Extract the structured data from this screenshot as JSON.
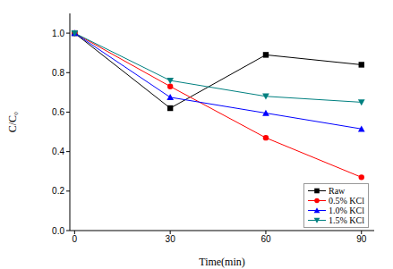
{
  "chart_data": {
    "type": "line",
    "x_label": "Time(min)",
    "y_label": "C/C₀",
    "x": [
      0,
      30,
      60,
      90
    ],
    "series": [
      {
        "name": "Raw",
        "color": "#000000",
        "marker": "square",
        "values": [
          1.0,
          0.62,
          0.89,
          0.84
        ]
      },
      {
        "name": "0.5% KCl",
        "color": "#ff0000",
        "marker": "circle",
        "values": [
          1.0,
          0.73,
          0.47,
          0.27
        ]
      },
      {
        "name": "1.0% KCl",
        "color": "#0000ff",
        "marker": "triangle-up",
        "values": [
          1.0,
          0.675,
          0.595,
          0.515
        ]
      },
      {
        "name": "1.5% KCl",
        "color": "#008080",
        "marker": "triangle-down",
        "values": [
          1.0,
          0.76,
          0.68,
          0.65
        ]
      }
    ],
    "xlim": [
      -1.5,
      94
    ],
    "ylim": [
      0,
      1.1
    ],
    "xticks": [
      0,
      30,
      60,
      90
    ],
    "yticks": [
      {
        "value": 0,
        "label": "0.0"
      },
      0.2,
      0.4,
      0.6,
      0.8,
      {
        "value": 1,
        "label": "1.0"
      }
    ],
    "grid": false,
    "legend": "lower right"
  }
}
